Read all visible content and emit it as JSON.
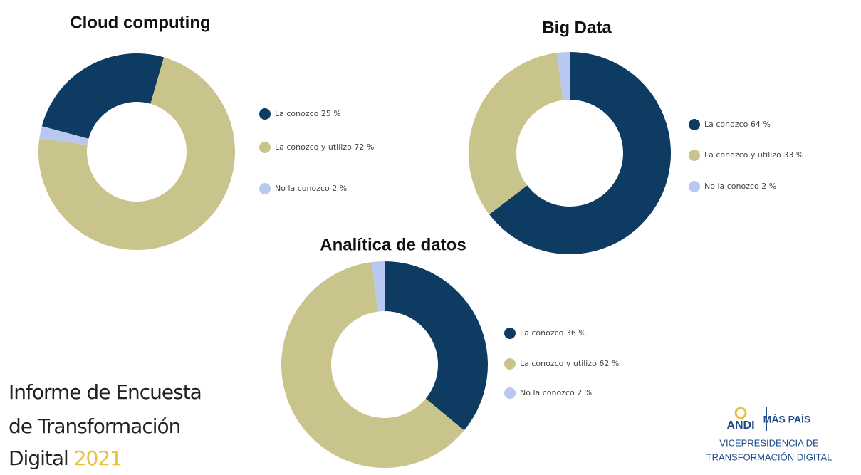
{
  "chart_data": [
    {
      "type": "donut",
      "title": "Cloud computing",
      "categories": [
        "La conozco",
        "La conozco y utilizo",
        "No la conozco"
      ],
      "values": [
        25,
        72,
        2
      ],
      "value_labels": [
        "25 %",
        "72 %",
        "2 %"
      ],
      "colors": [
        "#0d3b61",
        "#c9c38c",
        "#b9c8f0"
      ]
    },
    {
      "type": "donut",
      "title": "Big Data",
      "categories": [
        "La conozco",
        "La conozco y utilizo",
        "No la conozco"
      ],
      "values": [
        64,
        33,
        2
      ],
      "value_labels": [
        "64 %",
        "33 %",
        "2 %"
      ],
      "colors": [
        "#0d3b61",
        "#c9c38c",
        "#b9c8f0"
      ]
    },
    {
      "type": "donut",
      "title": "Analítica de datos",
      "categories": [
        "La conozco",
        "La conozco y utilizo",
        "No la conozco"
      ],
      "values": [
        36,
        62,
        2
      ],
      "value_labels": [
        "36 %",
        "62 %",
        "2 %"
      ],
      "colors": [
        "#0d3b61",
        "#c9c38c",
        "#b9c8f0"
      ]
    }
  ],
  "report_title": {
    "lines": [
      "Informe de Encuesta",
      "de Transformación",
      "Digital"
    ],
    "year": "2021"
  },
  "logo": {
    "left": "ANDI",
    "right": "MÁS PAÍS",
    "lines": [
      "VICEPRESIDENCIA DE",
      "TRANSFORMACIÓN DIGITAL"
    ]
  }
}
